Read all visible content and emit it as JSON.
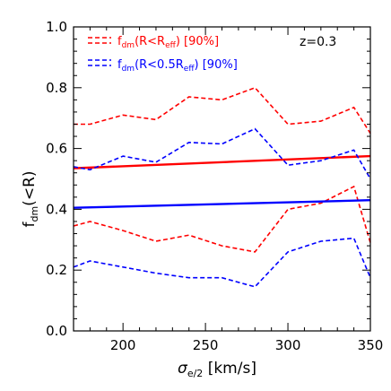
{
  "chart_data": {
    "type": "line",
    "xlim": [
      170,
      350
    ],
    "ylim": [
      0.0,
      1.0
    ],
    "xticks": [
      200,
      250,
      300,
      350
    ],
    "yticks": [
      0.0,
      0.2,
      0.4,
      0.6,
      0.8,
      1.0
    ],
    "xtick_labels": [
      "200",
      "250",
      "300",
      "350"
    ],
    "ytick_labels": [
      "0.0",
      "0.2",
      "0.4",
      "0.6",
      "0.8",
      "1.0"
    ],
    "xlabel": {
      "main": "σ",
      "sub": "e/2",
      "rest": " [km/s]"
    },
    "ylabel": {
      "main": "f",
      "sub": "dm",
      "rest": "(<R)"
    },
    "annotation": "z=0.3",
    "legend_position": "top-left",
    "series": [
      {
        "legend": {
          "main": "f",
          "sub": "dm",
          "mid": "(R<R",
          "sub2": "eff",
          "end": ") [90%]"
        },
        "color": "#ff0000",
        "median": {
          "x": [
            170,
            350
          ],
          "y": [
            0.535,
            0.575
          ]
        },
        "upper": {
          "x": [
            170,
            180,
            200,
            220,
            240,
            260,
            280,
            300,
            320,
            340,
            350
          ],
          "y": [
            0.68,
            0.68,
            0.71,
            0.695,
            0.77,
            0.76,
            0.8,
            0.68,
            0.69,
            0.735,
            0.65
          ]
        },
        "lower": {
          "x": [
            170,
            180,
            200,
            220,
            240,
            260,
            280,
            300,
            320,
            340,
            350
          ],
          "y": [
            0.345,
            0.36,
            0.33,
            0.295,
            0.315,
            0.28,
            0.26,
            0.4,
            0.42,
            0.475,
            0.29
          ]
        }
      },
      {
        "legend": {
          "main": "f",
          "sub": "dm",
          "mid": "(R<0.5R",
          "sub2": "eff",
          "end": ") [90%]"
        },
        "color": "#0000ff",
        "median": {
          "x": [
            170,
            350
          ],
          "y": [
            0.405,
            0.43
          ]
        },
        "upper": {
          "x": [
            170,
            180,
            200,
            220,
            240,
            260,
            280,
            300,
            320,
            340,
            350
          ],
          "y": [
            0.54,
            0.53,
            0.575,
            0.555,
            0.62,
            0.615,
            0.665,
            0.545,
            0.56,
            0.595,
            0.5
          ]
        },
        "lower": {
          "x": [
            170,
            180,
            200,
            220,
            240,
            260,
            280,
            300,
            320,
            340,
            350
          ],
          "y": [
            0.21,
            0.23,
            0.21,
            0.19,
            0.175,
            0.175,
            0.145,
            0.26,
            0.295,
            0.305,
            0.175
          ]
        }
      }
    ]
  }
}
